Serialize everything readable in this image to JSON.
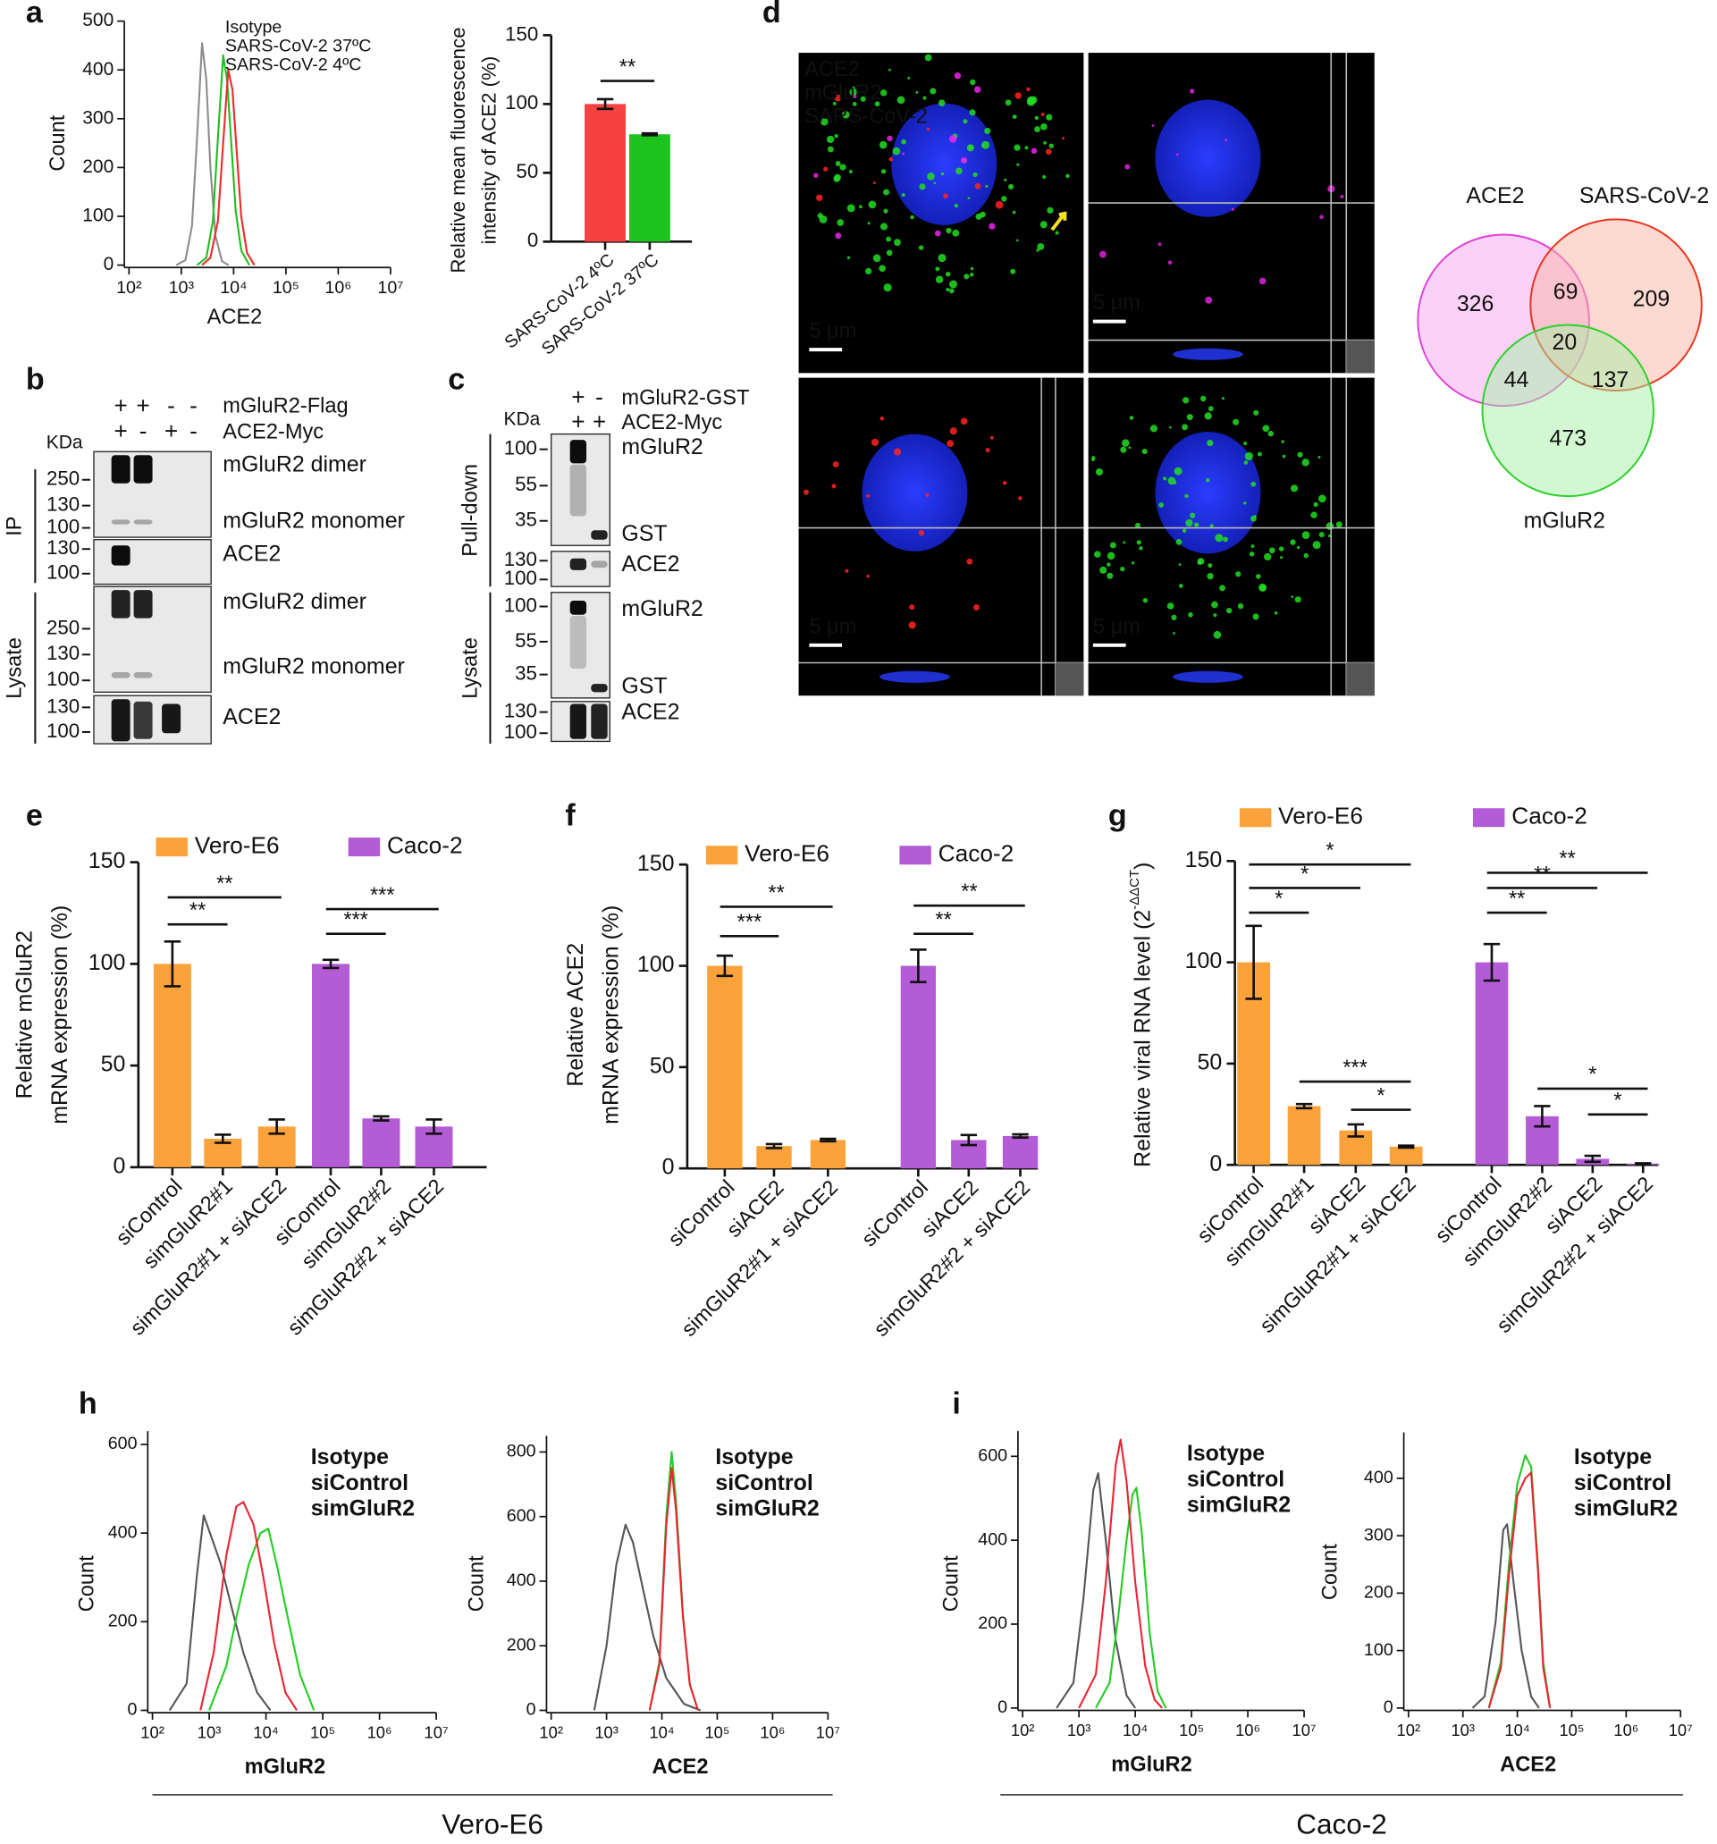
{
  "panel_labels": [
    "a",
    "b",
    "c",
    "d",
    "e",
    "f",
    "g",
    "h",
    "i"
  ],
  "chart_data": [
    {
      "type": "line",
      "xscale": "log",
      "xlabel": "ACE2",
      "ylabel": "Count",
      "xlim": [
        100,
        10000000
      ],
      "ylim": [
        0,
        500
      ],
      "xticks": [
        {
          "value": 100,
          "label": "10²"
        },
        {
          "value": 1000,
          "label": "10³"
        },
        {
          "value": 10000,
          "label": "10⁴"
        },
        {
          "value": 100000,
          "label": "10⁵"
        },
        {
          "value": 1000000,
          "label": "10⁶"
        },
        {
          "value": 10000000,
          "label": "10⁷"
        }
      ],
      "yticks": [
        0,
        100,
        200,
        300,
        400,
        500
      ],
      "series": [
        {
          "name": "Isotype",
          "color": "#8c8c8c",
          "x": [
            800,
            1200,
            1600,
            2000,
            2500,
            3000,
            3600,
            4500,
            6000,
            8000
          ],
          "values": [
            0,
            10,
            80,
            260,
            455,
            380,
            200,
            60,
            8,
            0
          ]
        },
        {
          "name": "SARS-CoV-2 37ºC",
          "color": "#1fbf1f",
          "x": [
            2000,
            3000,
            4000,
            5000,
            6300,
            7500,
            9000,
            11000,
            14000,
            20000
          ],
          "values": [
            0,
            15,
            90,
            260,
            430,
            380,
            250,
            110,
            30,
            0
          ]
        },
        {
          "name": "SARS-CoV-2 4ºC",
          "color": "#ee2a2a",
          "x": [
            2500,
            3600,
            5000,
            6300,
            7900,
            9500,
            11500,
            14000,
            18000,
            25000
          ],
          "values": [
            0,
            15,
            90,
            250,
            400,
            360,
            230,
            100,
            25,
            0
          ]
        }
      ]
    },
    {
      "type": "bar",
      "ylabel": [
        "Relative mean fluorescence",
        "intensity of ACE2 (%)"
      ],
      "categories": [
        "SARS-CoV-2 4ºC",
        "SARS-CoV-2 37ºC"
      ],
      "values": [
        100,
        78
      ],
      "errors": [
        3.5,
        0.7
      ],
      "colors": [
        "#f5413f",
        "#1ec41e"
      ],
      "ylim": [
        0,
        150
      ],
      "yticks": [
        0,
        50,
        100,
        150
      ],
      "annotations": [
        "**"
      ]
    },
    {
      "type": "bar",
      "ylabel": [
        "Relative mGluR2",
        "mRNA expression (%)"
      ],
      "categories": [
        "siControl",
        "simGluR2#1",
        "simGluR2#1 + siACE2",
        "siControl",
        "simGluR2#2",
        "simGluR2#2 + siACE2"
      ],
      "series": [
        {
          "name": "Vero-E6",
          "color": "#fba23a",
          "values": [
            100,
            14,
            20,
            null,
            null,
            null
          ],
          "errors": [
            11,
            2,
            3.5,
            null,
            null,
            null
          ]
        },
        {
          "name": "Caco-2",
          "color": "#b45bd6",
          "values": [
            null,
            null,
            null,
            100,
            24,
            20
          ],
          "errors": [
            null,
            null,
            null,
            2,
            1,
            3.5
          ]
        }
      ],
      "ylim": [
        0,
        150
      ],
      "yticks": [
        0,
        50,
        100,
        150
      ],
      "annotations": [
        "**",
        "**",
        "***",
        "***"
      ]
    },
    {
      "type": "bar",
      "ylabel": [
        "Relative ACE2",
        "mRNA expression (%)"
      ],
      "categories": [
        "siControl",
        "siACE2",
        "simGluR2#1 + siACE2",
        "siControl",
        "siACE2",
        "simGluR2#2 + siACE2"
      ],
      "series": [
        {
          "name": "Vero-E6",
          "color": "#fba23a",
          "values": [
            100,
            11,
            14,
            null,
            null,
            null
          ],
          "errors": [
            5,
            1,
            0.6,
            null,
            null,
            null
          ]
        },
        {
          "name": "Caco-2",
          "color": "#b45bd6",
          "values": [
            null,
            null,
            null,
            100,
            14,
            16
          ],
          "errors": [
            null,
            null,
            null,
            8,
            2.5,
            0.8
          ]
        }
      ],
      "ylim": [
        0,
        150
      ],
      "yticks": [
        0,
        50,
        100,
        150
      ],
      "annotations": [
        "***",
        "**",
        "**",
        "**"
      ]
    },
    {
      "type": "bar",
      "ylabel": [
        "Relative viral RNA level (2"
      ],
      "ylabel_sup": "-ΔΔCT",
      "ylabel_end": ")",
      "categories": [
        "siControl",
        "simGluR2#1",
        "siACE2",
        "simGluR2#1 + siACE2",
        "siControl",
        "simGluR2#2",
        "siACE2",
        "simGluR2#2 + siACE2"
      ],
      "series": [
        {
          "name": "Vero-E6",
          "color": "#fba23a",
          "values": [
            100,
            29,
            17,
            9,
            null,
            null,
            null,
            null
          ],
          "errors": [
            18,
            1,
            3,
            0.5,
            null,
            null,
            null,
            null
          ]
        },
        {
          "name": "Caco-2",
          "color": "#b45bd6",
          "values": [
            null,
            null,
            null,
            null,
            100,
            24,
            3,
            0.5
          ],
          "errors": [
            null,
            null,
            null,
            null,
            9,
            5,
            1.5,
            0.3
          ]
        }
      ],
      "ylim": [
        0,
        150
      ],
      "yticks": [
        0,
        50,
        100,
        150
      ],
      "annotations": [
        "*",
        "*",
        "*",
        "***",
        "*",
        "**",
        "**",
        "**",
        "*",
        "*"
      ]
    },
    {
      "type": "line",
      "xscale": "log",
      "xlabel": "mGluR2",
      "ylabel": "Count",
      "xlim": [
        100,
        10000000
      ],
      "ylim": [
        0,
        630
      ],
      "xticks": [
        {
          "value": 100,
          "label": "10²"
        },
        {
          "value": 1000,
          "label": "10³"
        },
        {
          "value": 10000,
          "label": "10⁴"
        },
        {
          "value": 100000,
          "label": "10⁵"
        },
        {
          "value": 1000000,
          "label": "10⁶"
        },
        {
          "value": 10000000,
          "label": "10⁷"
        }
      ],
      "yticks": [
        0,
        200,
        400,
        600
      ],
      "series": [
        {
          "name": "Isotype",
          "color": "#555555",
          "x": [
            200,
            400,
            600,
            800,
            1100,
            1600,
            2500,
            4000,
            7000,
            12000
          ],
          "values": [
            0,
            60,
            300,
            440,
            390,
            330,
            230,
            130,
            40,
            0
          ]
        },
        {
          "name": "siControl",
          "color": "#22cc22",
          "x": [
            1000,
            2000,
            3000,
            5000,
            8000,
            11000,
            16000,
            25000,
            40000,
            70000
          ],
          "values": [
            0,
            100,
            210,
            330,
            400,
            410,
            320,
            200,
            80,
            0
          ]
        },
        {
          "name": "simGluR2",
          "color": "#ee2233",
          "x": [
            700,
            1200,
            2000,
            3000,
            4000,
            6000,
            9000,
            14000,
            22000,
            35000
          ],
          "values": [
            0,
            130,
            350,
            460,
            470,
            420,
            300,
            150,
            40,
            0
          ]
        }
      ]
    },
    {
      "type": "line",
      "xscale": "log",
      "xlabel": "ACE2",
      "ylabel": "Count",
      "xlim": [
        100,
        10000000
      ],
      "ylim": [
        0,
        850
      ],
      "xticks": [
        {
          "value": 100,
          "label": "10²"
        },
        {
          "value": 1000,
          "label": "10³"
        },
        {
          "value": 10000,
          "label": "10⁴"
        },
        {
          "value": 100000,
          "label": "10⁵"
        },
        {
          "value": 1000000,
          "label": "10⁶"
        },
        {
          "value": 10000000,
          "label": "10⁷"
        }
      ],
      "yticks": [
        0,
        200,
        400,
        600,
        800
      ],
      "series": [
        {
          "name": "Isotype",
          "color": "#555555",
          "x": [
            600,
            1000,
            1500,
            2200,
            3000,
            4500,
            7000,
            12000,
            25000,
            50000
          ],
          "values": [
            0,
            200,
            450,
            575,
            520,
            380,
            230,
            100,
            20,
            0
          ]
        },
        {
          "name": "siControl",
          "color": "#22cc22",
          "x": [
            6000,
            9000,
            12000,
            15000,
            18000,
            24000,
            32000,
            45000
          ],
          "values": [
            0,
            150,
            600,
            800,
            650,
            300,
            80,
            0
          ]
        },
        {
          "name": "simGluR2",
          "color": "#ee2233",
          "x": [
            6000,
            9000,
            12000,
            15000,
            18000,
            24000,
            32000,
            45000
          ],
          "values": [
            0,
            140,
            570,
            750,
            620,
            290,
            80,
            0
          ]
        }
      ]
    },
    {
      "type": "line",
      "xscale": "log",
      "xlabel": "mGluR2",
      "ylabel": "Count",
      "xlim": [
        100,
        10000000
      ],
      "ylim": [
        0,
        660
      ],
      "xticks": [
        {
          "value": 100,
          "label": "10²"
        },
        {
          "value": 1000,
          "label": "10³"
        },
        {
          "value": 10000,
          "label": "10⁴"
        },
        {
          "value": 100000,
          "label": "10⁵"
        },
        {
          "value": 1000000,
          "label": "10⁶"
        },
        {
          "value": 10000000,
          "label": "10⁷"
        }
      ],
      "yticks": [
        0,
        200,
        400,
        600
      ],
      "series": [
        {
          "name": "Isotype",
          "color": "#555555",
          "x": [
            400,
            800,
            1200,
            1800,
            2200,
            3000,
            4500,
            7000,
            10000
          ],
          "values": [
            0,
            60,
            260,
            520,
            560,
            400,
            160,
            30,
            0
          ]
        },
        {
          "name": "siControl",
          "color": "#22cc22",
          "x": [
            2000,
            3500,
            5000,
            7000,
            9000,
            10500,
            13000,
            18000,
            25000,
            35000
          ],
          "values": [
            0,
            60,
            220,
            400,
            510,
            525,
            420,
            180,
            40,
            0
          ]
        },
        {
          "name": "simGluR2",
          "color": "#ee2233",
          "x": [
            1000,
            2000,
            3000,
            4500,
            5500,
            7000,
            10000,
            15000,
            22000,
            30000
          ],
          "values": [
            0,
            80,
            300,
            580,
            640,
            540,
            300,
            100,
            20,
            0
          ]
        }
      ]
    },
    {
      "type": "line",
      "xscale": "log",
      "xlabel": "ACE2",
      "ylabel": "Count",
      "xlim": [
        100,
        10000000
      ],
      "ylim": [
        0,
        480
      ],
      "xticks": [
        {
          "value": 100,
          "label": "10²"
        },
        {
          "value": 1000,
          "label": "10³"
        },
        {
          "value": 10000,
          "label": "10⁴"
        },
        {
          "value": 100000,
          "label": "10⁵"
        },
        {
          "value": 1000000,
          "label": "10⁶"
        },
        {
          "value": 10000000,
          "label": "10⁷"
        }
      ],
      "yticks": [
        0,
        100,
        200,
        300,
        400
      ],
      "series": [
        {
          "name": "Isotype",
          "color": "#555555",
          "x": [
            1500,
            2500,
            4000,
            5500,
            6500,
            8500,
            12000,
            18000,
            25000
          ],
          "values": [
            0,
            20,
            150,
            310,
            320,
            220,
            100,
            20,
            0
          ]
        },
        {
          "name": "siControl",
          "color": "#22cc22",
          "x": [
            3000,
            5000,
            7000,
            10000,
            14000,
            18000,
            24000,
            30000,
            40000
          ],
          "values": [
            0,
            80,
            250,
            390,
            440,
            420,
            250,
            80,
            0
          ]
        },
        {
          "name": "simGluR2",
          "color": "#ee2233",
          "x": [
            3000,
            5000,
            7000,
            10000,
            14000,
            18000,
            24000,
            30000,
            40000
          ],
          "values": [
            0,
            70,
            230,
            370,
            400,
            410,
            240,
            70,
            0
          ]
        }
      ]
    }
  ],
  "blot_b": {
    "conditions": [
      {
        "name": "mGluR2-Flag",
        "signs": [
          "+",
          "+",
          "-",
          "-"
        ]
      },
      {
        "name": "ACE2-Myc",
        "signs": [
          "+",
          "-",
          "+",
          "-"
        ]
      }
    ],
    "unit": "KDa",
    "sections": [
      {
        "name": "IP",
        "blots": [
          {
            "markers": [
              250,
              130,
              100
            ],
            "bands": [
              "mGluR2 dimer",
              "mGluR2 monomer"
            ]
          },
          {
            "markers": [
              130,
              100
            ],
            "bands": [
              "ACE2"
            ]
          }
        ]
      },
      {
        "name": "Lysate",
        "blots": [
          {
            "markers": [
              250,
              130,
              100
            ],
            "bands": [
              "mGluR2 dimer",
              "mGluR2 monomer"
            ]
          },
          {
            "markers": [
              130,
              100
            ],
            "bands": [
              "ACE2"
            ]
          }
        ]
      }
    ]
  },
  "blot_c": {
    "conditions": [
      {
        "name": "mGluR2-GST",
        "signs": [
          "+",
          "-"
        ]
      },
      {
        "name": "ACE2-Myc",
        "signs": [
          "+",
          "+"
        ]
      }
    ],
    "unit": "KDa",
    "sections": [
      {
        "name": "Pull-down",
        "blots": [
          {
            "markers": [
              100,
              55,
              35
            ],
            "bands": [
              "mGluR2",
              "GST"
            ]
          },
          {
            "markers": [
              130,
              100
            ],
            "bands": [
              "ACE2"
            ]
          }
        ]
      },
      {
        "name": "Lysate",
        "blots": [
          {
            "markers": [
              100,
              55,
              35
            ],
            "bands": [
              "mGluR2",
              "GST"
            ]
          },
          {
            "markers": [
              130,
              100
            ],
            "bands": [
              "ACE2"
            ]
          }
        ]
      }
    ]
  },
  "microscopy": {
    "channels": [
      "ACE2",
      "mGluR2",
      "SARS-CoV-2"
    ],
    "scale_bars": [
      "5 μm",
      "5 μm",
      "5 μm",
      "5 μm"
    ]
  },
  "venn": {
    "sets": [
      "ACE2",
      "SARS-CoV-2",
      "mGluR2"
    ],
    "regions": [
      326,
      69,
      209,
      20,
      44,
      137,
      473
    ]
  },
  "group_labels": [
    "Vero-E6",
    "Caco-2"
  ]
}
